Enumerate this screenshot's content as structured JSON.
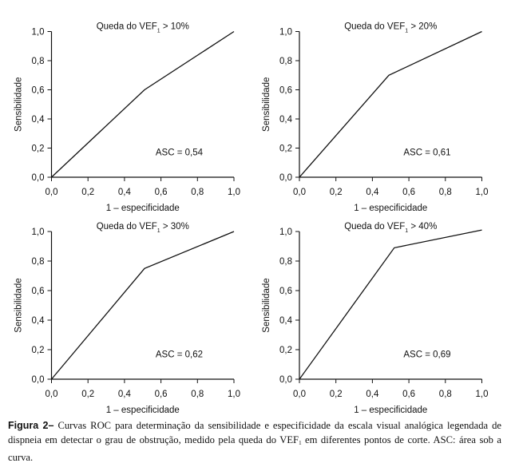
{
  "chart_data": [
    {
      "type": "line",
      "title": "Queda do VEF",
      "title_subscript": "1",
      "title_suffix": " > 10%",
      "xlabel": "1 – especificidade",
      "ylabel": "Sensibilidade",
      "xlim": [
        0,
        1
      ],
      "ylim": [
        0,
        1
      ],
      "xticks": [
        "0,0",
        "0,2",
        "0,4",
        "0,6",
        "0,8",
        "1,0"
      ],
      "yticks": [
        "0,0",
        "0,2",
        "0,4",
        "0,6",
        "0,8",
        "1,0"
      ],
      "grid": false,
      "series": [
        {
          "name": "ROC",
          "x": [
            0.0,
            0.51,
            1.0
          ],
          "y": [
            0.0,
            0.6,
            1.0
          ]
        }
      ],
      "annotation": "ASC = 0,54"
    },
    {
      "type": "line",
      "title": "Queda do VEF",
      "title_subscript": "1",
      "title_suffix": " > 20%",
      "xlabel": "1 – especificidade",
      "ylabel": "Sensibilidade",
      "xlim": [
        0,
        1
      ],
      "ylim": [
        0,
        1
      ],
      "xticks": [
        "0,0",
        "0,2",
        "0,4",
        "0,6",
        "0,8",
        "1,0"
      ],
      "yticks": [
        "0,0",
        "0,2",
        "0,4",
        "0,6",
        "0,8",
        "1,0"
      ],
      "grid": false,
      "series": [
        {
          "name": "ROC",
          "x": [
            0.0,
            0.49,
            1.0
          ],
          "y": [
            0.0,
            0.7,
            1.0
          ]
        }
      ],
      "annotation": "ASC = 0,61"
    },
    {
      "type": "line",
      "title": "Queda do VEF",
      "title_subscript": "1",
      "title_suffix": " > 30%",
      "xlabel": "1 – especificidade",
      "ylabel": "Sensibilidade",
      "xlim": [
        0,
        1
      ],
      "ylim": [
        0,
        1
      ],
      "xticks": [
        "0,0",
        "0,2",
        "0,4",
        "0,6",
        "0,8",
        "1,0"
      ],
      "yticks": [
        "0,0",
        "0,2",
        "0,4",
        "0,6",
        "0,8",
        "1,0"
      ],
      "grid": false,
      "series": [
        {
          "name": "ROC",
          "x": [
            0.0,
            0.51,
            1.0
          ],
          "y": [
            0.0,
            0.75,
            1.0
          ]
        }
      ],
      "annotation": "ASC = 0,62"
    },
    {
      "type": "line",
      "title": "Queda do VEF",
      "title_subscript": "1",
      "title_suffix": " > 40%",
      "xlabel": "1 – especificidade",
      "ylabel": "Sensibilidade",
      "xlim": [
        0,
        1
      ],
      "ylim": [
        0,
        1
      ],
      "xticks": [
        "0,0",
        "0,2",
        "0,4",
        "0,6",
        "0,8",
        "1,0"
      ],
      "yticks": [
        "0,0",
        "0,2",
        "0,4",
        "0,6",
        "0,8",
        "1,0"
      ],
      "grid": false,
      "series": [
        {
          "name": "ROC",
          "x": [
            0.0,
            0.52,
            1.0
          ],
          "y": [
            0.0,
            0.89,
            1.01
          ]
        }
      ],
      "annotation": "ASC = 0,69"
    }
  ],
  "caption": {
    "label": "Figura 2–",
    "text_before_sub": " Curvas ROC para determinação da sensibilidade e especificidade da escala visual analógica legendada de dispneia em detectar o grau de obstrução, medido pela queda do VEF",
    "subscript": "1",
    "text_after_sub": " em diferentes pontos de corte. ASC: área sob a curva."
  }
}
